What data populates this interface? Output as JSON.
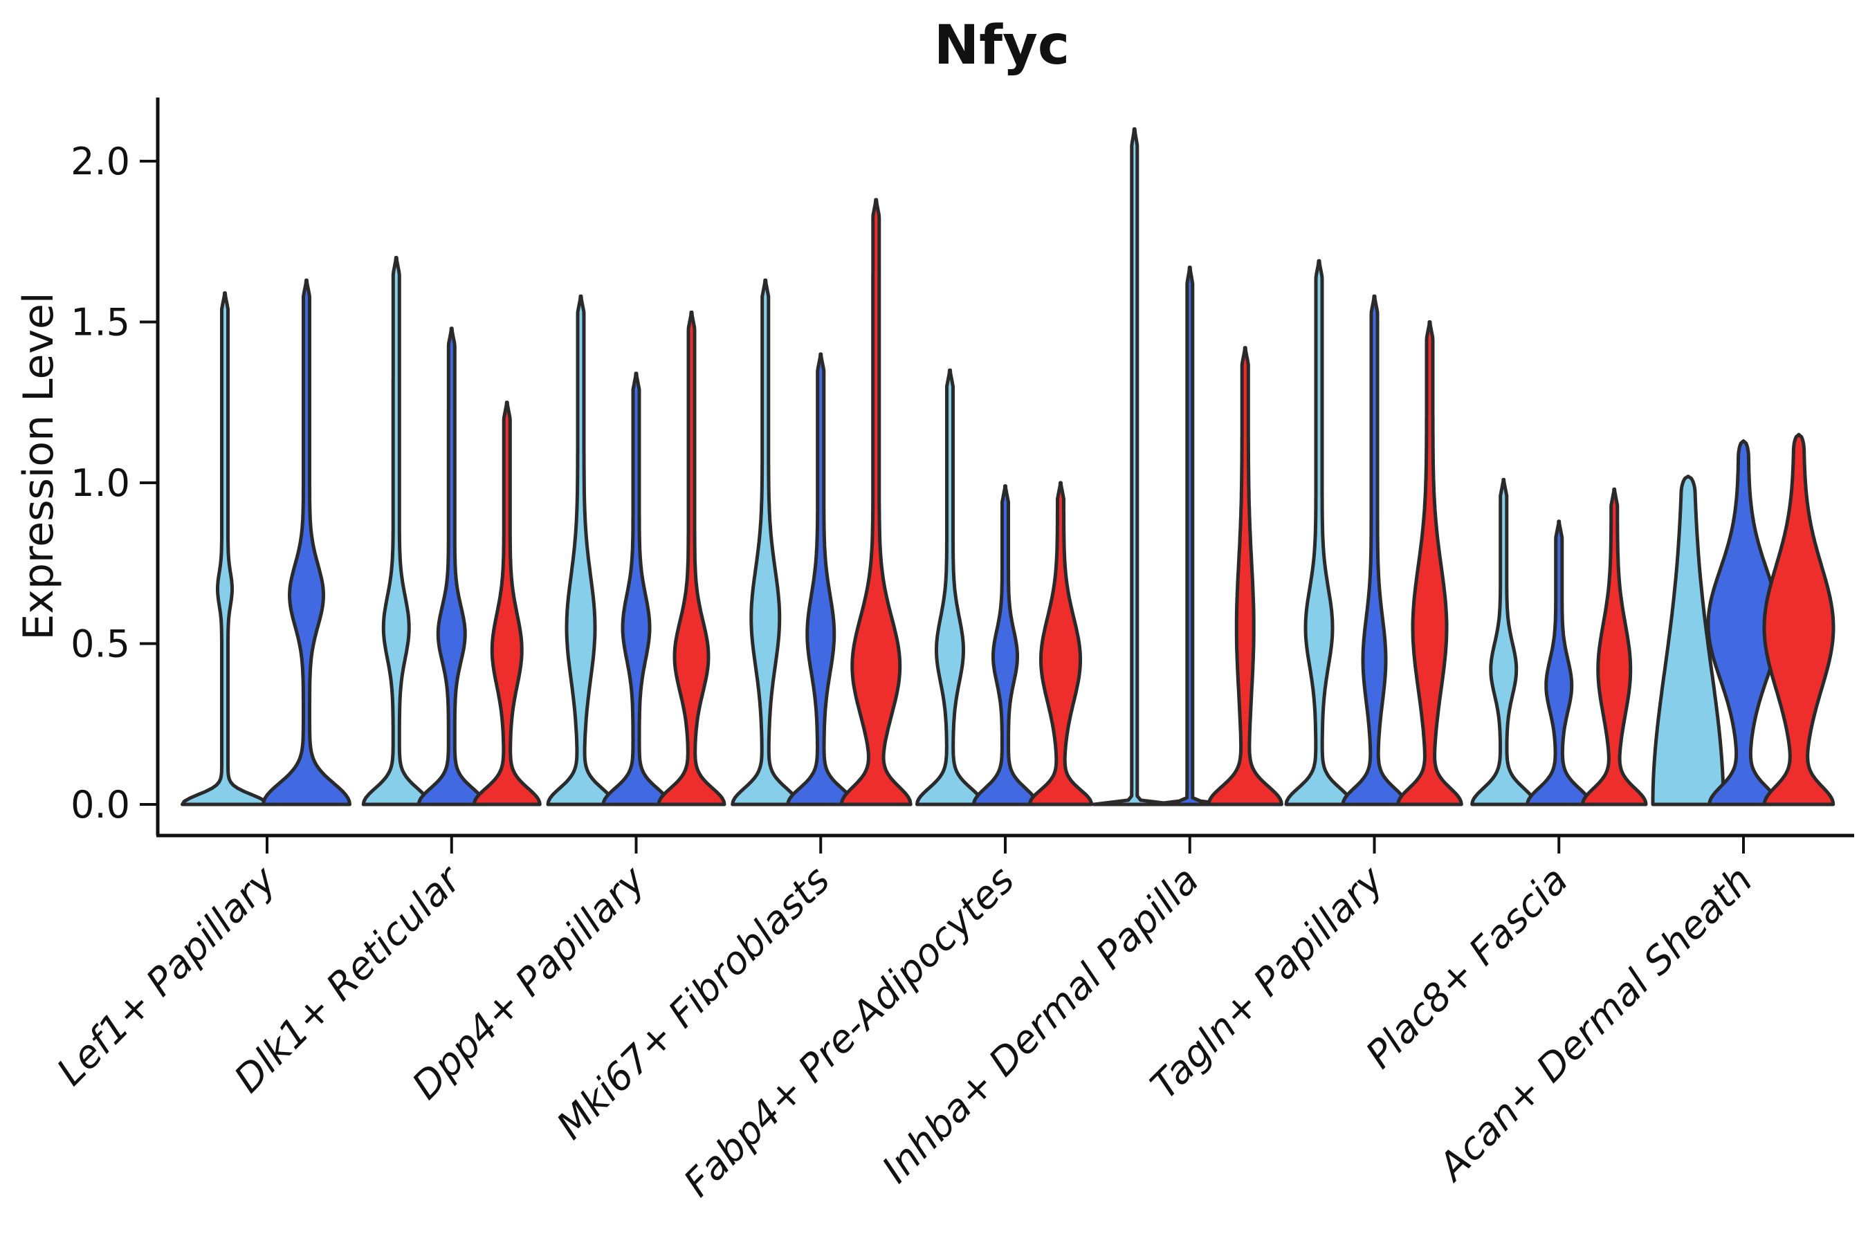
{
  "chart_data": {
    "type": "violin",
    "title": "Nfyc",
    "ylabel": "Expression Level",
    "xlabel": "",
    "ylim": [
      0,
      2.2
    ],
    "yticks": [
      "0.0",
      "0.5",
      "1.0",
      "1.5",
      "2.0"
    ],
    "ytick_values": [
      0.0,
      0.5,
      1.0,
      1.5,
      2.0
    ],
    "grid": false,
    "legend_position": "none",
    "palette": {
      "s1": "#87CEEB",
      "s2": "#4169E1",
      "s3": "#EE2D2D",
      "outline": "#2a2a2a"
    },
    "groups": [
      {
        "label": "Lef1+ Papillary",
        "violins": [
          {
            "series": "s1",
            "color": "#87CEEB",
            "max": 1.59,
            "mode": 0.67,
            "offset": -61,
            "base": {
              "s": 0.03,
              "w": 57
            },
            "bulges": [
              {
                "c": 0.67,
                "s": 0.05,
                "w": 6
              }
            ],
            "stem": 4.5,
            "top": "point"
          },
          {
            "series": "s2",
            "color": "#4169E1",
            "max": 1.63,
            "mode": 0.65,
            "offset": 57,
            "base": {
              "s": 0.065,
              "w": 58
            },
            "bulges": [
              {
                "c": 0.65,
                "s": 0.095,
                "w": 20
              }
            ],
            "stem": 4.5,
            "top": "point"
          }
        ]
      },
      {
        "label": "Dlk1+ Reticular",
        "violins": [
          {
            "series": "s1",
            "color": "#87CEEB",
            "max": 1.7,
            "mode": 0.55,
            "offset": -80,
            "base": {
              "s": 0.05,
              "w": 43
            },
            "bulges": [
              {
                "c": 0.55,
                "s": 0.095,
                "w": 14
              }
            ],
            "stem": 4.5,
            "top": "point"
          },
          {
            "series": "s2",
            "color": "#4169E1",
            "max": 1.48,
            "mode": 0.53,
            "offset": 0,
            "base": {
              "s": 0.05,
              "w": 43
            },
            "bulges": [
              {
                "c": 0.53,
                "s": 0.085,
                "w": 15
              }
            ],
            "stem": 4.5,
            "top": "point"
          },
          {
            "series": "s3",
            "color": "#EE2D2D",
            "max": 1.25,
            "mode": 0.48,
            "offset": 80,
            "base": {
              "s": 0.05,
              "w": 43
            },
            "bulges": [
              {
                "c": 0.48,
                "s": 0.11,
                "w": 17
              }
            ],
            "stem": 4.5,
            "top": "point"
          }
        ]
      },
      {
        "label": "Dpp4+ Papillary",
        "violins": [
          {
            "series": "s1",
            "color": "#87CEEB",
            "max": 1.58,
            "mode": 0.55,
            "offset": -80,
            "base": {
              "s": 0.05,
              "w": 43
            },
            "bulges": [
              {
                "c": 0.55,
                "s": 0.16,
                "w": 16
              }
            ],
            "stem": 4.5,
            "top": "point"
          },
          {
            "series": "s2",
            "color": "#4169E1",
            "max": 1.34,
            "mode": 0.55,
            "offset": 0,
            "base": {
              "s": 0.05,
              "w": 43
            },
            "bulges": [
              {
                "c": 0.55,
                "s": 0.1,
                "w": 15
              }
            ],
            "stem": 4.5,
            "top": "point"
          },
          {
            "series": "s3",
            "color": "#EE2D2D",
            "max": 1.53,
            "mode": 0.46,
            "offset": 80,
            "base": {
              "s": 0.05,
              "w": 43
            },
            "bulges": [
              {
                "c": 0.46,
                "s": 0.11,
                "w": 20
              }
            ],
            "stem": 4.5,
            "top": "point"
          }
        ]
      },
      {
        "label": "Mki67+ Fibroblasts",
        "violins": [
          {
            "series": "s1",
            "color": "#87CEEB",
            "max": 1.63,
            "mode": 0.58,
            "offset": -80,
            "base": {
              "s": 0.05,
              "w": 43
            },
            "bulges": [
              {
                "c": 0.58,
                "s": 0.15,
                "w": 16
              }
            ],
            "stem": 4.5,
            "top": "point"
          },
          {
            "series": "s2",
            "color": "#4169E1",
            "max": 1.4,
            "mode": 0.53,
            "offset": 0,
            "base": {
              "s": 0.05,
              "w": 43
            },
            "bulges": [
              {
                "c": 0.53,
                "s": 0.12,
                "w": 15
              }
            ],
            "stem": 4.5,
            "top": "point"
          },
          {
            "series": "s3",
            "color": "#EE2D2D",
            "max": 1.88,
            "mode": 0.43,
            "offset": 80,
            "base": {
              "s": 0.055,
              "w": 45
            },
            "bulges": [
              {
                "c": 0.43,
                "s": 0.15,
                "w": 30
              }
            ],
            "stem": 4.5,
            "top": "point"
          }
        ]
      },
      {
        "label": "Fabp4+ Pre-Adipocytes",
        "violins": [
          {
            "series": "s1",
            "color": "#87CEEB",
            "max": 1.35,
            "mode": 0.48,
            "offset": -80,
            "base": {
              "s": 0.05,
              "w": 43
            },
            "bulges": [
              {
                "c": 0.48,
                "s": 0.1,
                "w": 15
              }
            ],
            "stem": 4.5,
            "top": "point"
          },
          {
            "series": "s2",
            "color": "#4169E1",
            "max": 0.99,
            "mode": 0.46,
            "offset": 0,
            "base": {
              "s": 0.05,
              "w": 41
            },
            "bulges": [
              {
                "c": 0.46,
                "s": 0.08,
                "w": 13
              }
            ],
            "stem": 4.5,
            "top": "point"
          },
          {
            "series": "s3",
            "color": "#EE2D2D",
            "max": 1.0,
            "mode": 0.45,
            "offset": 80,
            "base": {
              "s": 0.045,
              "w": 40
            },
            "bulges": [
              {
                "c": 0.45,
                "s": 0.13,
                "w": 24
              }
            ],
            "stem": 4.5,
            "top": "point"
          }
        ]
      },
      {
        "label": "Inhba+ Dermal Papilla",
        "violins": [
          {
            "series": "s1",
            "color": "#87CEEB",
            "max": 2.1,
            "mode": 0.0,
            "offset": -80,
            "base": {
              "s": 0.006,
              "w": 55
            },
            "bulges": [],
            "stem": 4.0,
            "top": "point"
          },
          {
            "series": "s2",
            "color": "#4169E1",
            "max": 1.67,
            "mode": 0.0,
            "offset": 0,
            "base": {
              "s": 0.006,
              "w": 50
            },
            "bulges": [],
            "stem": 4.0,
            "top": "point"
          },
          {
            "series": "s3",
            "color": "#EE2D2D",
            "max": 1.42,
            "mode": 0.55,
            "offset": 80,
            "base": {
              "s": 0.055,
              "w": 48
            },
            "bulges": [
              {
                "c": 0.55,
                "s": 0.2,
                "w": 8
              }
            ],
            "stem": 4.5,
            "top": "point"
          }
        ]
      },
      {
        "label": "Tagln+ Papillary",
        "violins": [
          {
            "series": "s1",
            "color": "#87CEEB",
            "max": 1.69,
            "mode": 0.55,
            "offset": -80,
            "base": {
              "s": 0.05,
              "w": 43
            },
            "bulges": [
              {
                "c": 0.55,
                "s": 0.12,
                "w": 15
              }
            ],
            "stem": 4.5,
            "top": "point"
          },
          {
            "series": "s2",
            "color": "#4169E1",
            "max": 1.58,
            "mode": 0.45,
            "offset": 0,
            "base": {
              "s": 0.05,
              "w": 41
            },
            "bulges": [
              {
                "c": 0.45,
                "s": 0.13,
                "w": 12
              }
            ],
            "stem": 4.5,
            "top": "point"
          },
          {
            "series": "s3",
            "color": "#EE2D2D",
            "max": 1.5,
            "mode": 0.55,
            "offset": 80,
            "base": {
              "s": 0.05,
              "w": 41
            },
            "bulges": [
              {
                "c": 0.55,
                "s": 0.19,
                "w": 20
              }
            ],
            "stem": 4.5,
            "top": "point"
          }
        ]
      },
      {
        "label": "Plac8+ Fascia",
        "violins": [
          {
            "series": "s1",
            "color": "#87CEEB",
            "max": 1.01,
            "mode": 0.42,
            "offset": -80,
            "base": {
              "s": 0.05,
              "w": 41
            },
            "bulges": [
              {
                "c": 0.42,
                "s": 0.08,
                "w": 14
              }
            ],
            "stem": 4.5,
            "top": "point"
          },
          {
            "series": "s2",
            "color": "#4169E1",
            "max": 0.88,
            "mode": 0.37,
            "offset": 0,
            "base": {
              "s": 0.05,
              "w": 41
            },
            "bulges": [
              {
                "c": 0.37,
                "s": 0.08,
                "w": 14
              }
            ],
            "stem": 4.5,
            "top": "point"
          },
          {
            "series": "s3",
            "color": "#EE2D2D",
            "max": 0.98,
            "mode": 0.42,
            "offset": 80,
            "base": {
              "s": 0.05,
              "w": 41
            },
            "bulges": [
              {
                "c": 0.42,
                "s": 0.14,
                "w": 19
              }
            ],
            "stem": 4.5,
            "top": "point"
          }
        ]
      },
      {
        "label": "Acan+ Dermal Sheath",
        "violins": [
          {
            "series": "s1",
            "color": "#87CEEB",
            "max": 1.02,
            "mode": 0.22,
            "offset": -80,
            "base": {
              "s": 0.42,
              "w": 44
            },
            "bulges": [],
            "stem": 7.0,
            "top": "round"
          },
          {
            "series": "s2",
            "color": "#4169E1",
            "max": 1.13,
            "mode": 0.56,
            "offset": 0,
            "base": {
              "s": 0.055,
              "w": 42
            },
            "bulges": [
              {
                "c": 0.56,
                "s": 0.17,
                "w": 44
              }
            ],
            "stem": 7.0,
            "top": "round"
          },
          {
            "series": "s3",
            "color": "#EE2D2D",
            "max": 1.15,
            "mode": 0.55,
            "offset": 80,
            "base": {
              "s": 0.055,
              "w": 42
            },
            "bulges": [
              {
                "c": 0.55,
                "s": 0.19,
                "w": 43
              }
            ],
            "stem": 7.0,
            "top": "round"
          }
        ]
      }
    ]
  }
}
